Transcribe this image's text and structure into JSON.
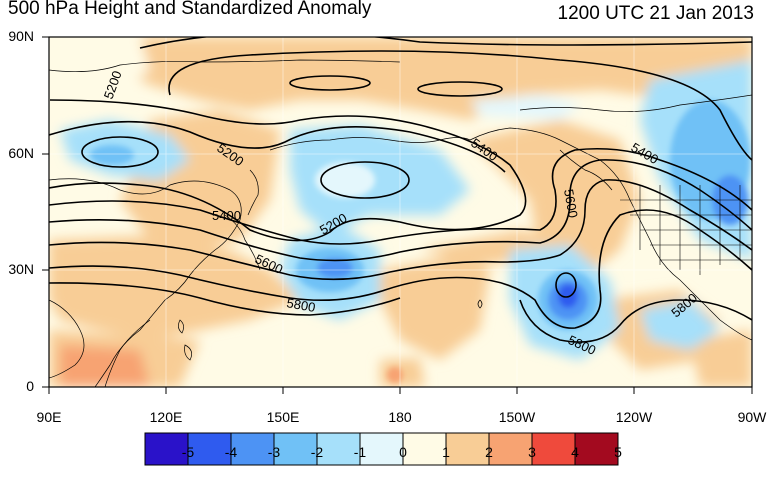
{
  "title": "500 hPa Height and Standardized Anomaly",
  "datetime": "1200 UTC 21 Jan 2013",
  "lat_labels": [
    "90N",
    "60N",
    "30N",
    "0"
  ],
  "lon_labels": [
    "90E",
    "120E",
    "150E",
    "180",
    "150W",
    "120W",
    "90W"
  ],
  "contour_labels": [
    "5200",
    "5200",
    "5200",
    "5400",
    "5400",
    "5400",
    "5600",
    "5600",
    "5800",
    "5800",
    "5800"
  ],
  "colorbar": {
    "ticks": [
      "-5",
      "-4",
      "-3",
      "-2",
      "-1",
      "0",
      "1",
      "2",
      "3",
      "4",
      "5"
    ],
    "colors": [
      "#2a12c9",
      "#2f5bef",
      "#4d93f4",
      "#70c1f6",
      "#a6e0fa",
      "#e4f7fc",
      "#fffbe6",
      "#f8cd96",
      "#f7a372",
      "#ef4a3c",
      "#a30a1f"
    ]
  }
}
